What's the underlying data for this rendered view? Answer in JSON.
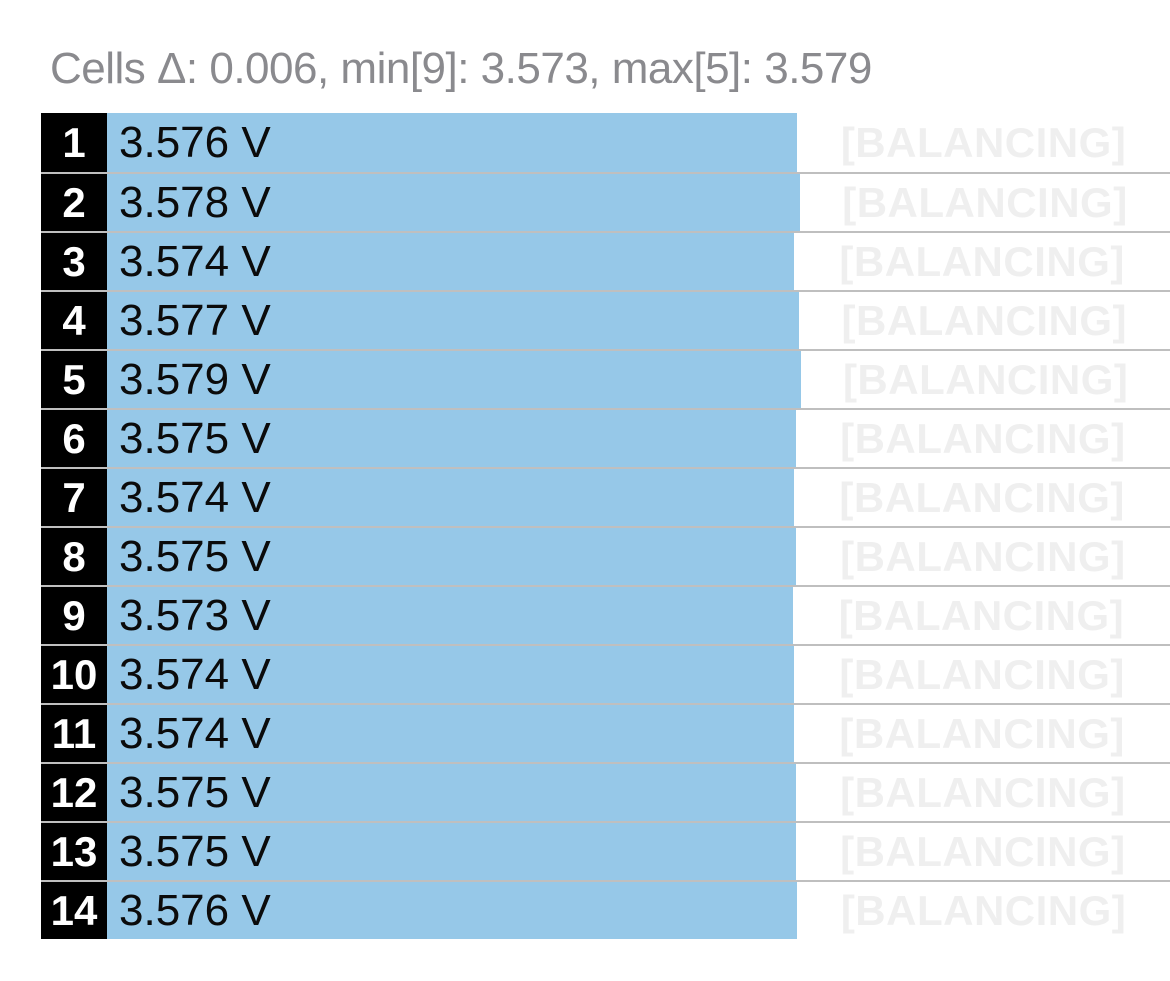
{
  "header": {
    "summary_text": "Cells Δ: 0.006, min[9]: 3.573, max[5]: 3.579"
  },
  "stats": {
    "delta_v": 0.006,
    "min_cell_index": 9,
    "min_voltage_v": 3.573,
    "max_cell_index": 5,
    "max_voltage_v": 3.579
  },
  "cells": [
    {
      "number": "1",
      "voltage_v": 3.576,
      "voltage_label": "3.576 V",
      "status_label": "[BALANCING]"
    },
    {
      "number": "2",
      "voltage_v": 3.578,
      "voltage_label": "3.578 V",
      "status_label": "[BALANCING]"
    },
    {
      "number": "3",
      "voltage_v": 3.574,
      "voltage_label": "3.574 V",
      "status_label": "[BALANCING]"
    },
    {
      "number": "4",
      "voltage_v": 3.577,
      "voltage_label": "3.577 V",
      "status_label": "[BALANCING]"
    },
    {
      "number": "5",
      "voltage_v": 3.579,
      "voltage_label": "3.579 V",
      "status_label": "[BALANCING]"
    },
    {
      "number": "6",
      "voltage_v": 3.575,
      "voltage_label": "3.575 V",
      "status_label": "[BALANCING]"
    },
    {
      "number": "7",
      "voltage_v": 3.574,
      "voltage_label": "3.574 V",
      "status_label": "[BALANCING]"
    },
    {
      "number": "8",
      "voltage_v": 3.575,
      "voltage_label": "3.575 V",
      "status_label": "[BALANCING]"
    },
    {
      "number": "9",
      "voltage_v": 3.573,
      "voltage_label": "3.573 V",
      "status_label": "[BALANCING]"
    },
    {
      "number": "10",
      "voltage_v": 3.574,
      "voltage_label": "3.574 V",
      "status_label": "[BALANCING]"
    },
    {
      "number": "11",
      "voltage_v": 3.574,
      "voltage_label": "3.574 V",
      "status_label": "[BALANCING]"
    },
    {
      "number": "12",
      "voltage_v": 3.575,
      "voltage_label": "3.575 V",
      "status_label": "[BALANCING]"
    },
    {
      "number": "13",
      "voltage_v": 3.575,
      "voltage_label": "3.575 V",
      "status_label": "[BALANCING]"
    },
    {
      "number": "14",
      "voltage_v": 3.576,
      "voltage_label": "3.576 V",
      "status_label": "[BALANCING]"
    }
  ],
  "colors": {
    "background": "#FFFFFF",
    "header_text": "#8A8A8E",
    "badge_background": "#000000",
    "badge_text": "#FFFFFF",
    "bar_fill": "#96C8E8",
    "voltage_text": "#0B0B0B",
    "balancing_text": "#EFEFEF"
  },
  "chart_data": {
    "type": "bar",
    "orientation": "horizontal",
    "title": "Cells Δ: 0.006, min[9]: 3.573, max[5]: 3.579",
    "categories": [
      1,
      2,
      3,
      4,
      5,
      6,
      7,
      8,
      9,
      10,
      11,
      12,
      13,
      14
    ],
    "values": [
      3.576,
      3.578,
      3.574,
      3.577,
      3.579,
      3.575,
      3.574,
      3.575,
      3.573,
      3.574,
      3.574,
      3.575,
      3.575,
      3.576
    ],
    "unit": "V",
    "bar_annotations": [
      "[BALANCING]",
      "[BALANCING]",
      "[BALANCING]",
      "[BALANCING]",
      "[BALANCING]",
      "[BALANCING]",
      "[BALANCING]",
      "[BALANCING]",
      "[BALANCING]",
      "[BALANCING]",
      "[BALANCING]",
      "[BALANCING]",
      "[BALANCING]",
      "[BALANCING]"
    ],
    "legend": false,
    "grid": false
  }
}
